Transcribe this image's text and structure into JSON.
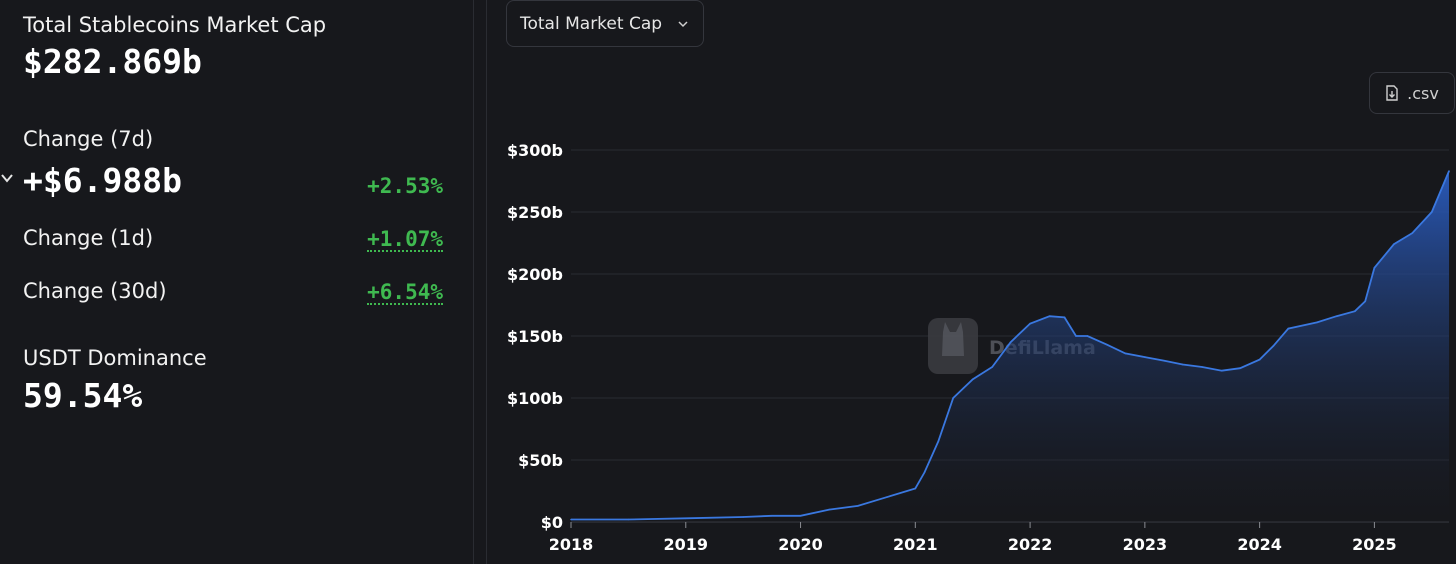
{
  "stats": {
    "total_label": "Total Stablecoins Market Cap",
    "total_value": "$282.869b",
    "change7d_label": "Change (7d)",
    "change7d_value": "+$6.988b",
    "change7d_pct": "+2.53%",
    "change1d_label": "Change (1d)",
    "change1d_pct": "+1.07%",
    "change30d_label": "Change (30d)",
    "change30d_pct": "+6.54%",
    "dominance_label": "USDT Dominance",
    "dominance_value": "59.54%"
  },
  "controls": {
    "dropdown_label": "Total Market Cap",
    "csv_label": ".csv"
  },
  "watermark": "DefiLlama",
  "colors": {
    "positive": "#3fb950",
    "line": "#3a78e0",
    "area_top": "#2a5cc0",
    "grid": "#2a2c32"
  },
  "chart_data": {
    "type": "area",
    "title": "",
    "xlabel": "",
    "ylabel": "",
    "ylim": [
      0,
      300
    ],
    "xlim": [
      2018,
      2025.65
    ],
    "y_ticks": [
      "$0",
      "$50b",
      "$100b",
      "$150b",
      "$200b",
      "$250b",
      "$300b"
    ],
    "y_tick_values": [
      0,
      50,
      100,
      150,
      200,
      250,
      300
    ],
    "x_ticks": [
      "2018",
      "2019",
      "2020",
      "2021",
      "2022",
      "2023",
      "2024",
      "2025"
    ],
    "x_tick_values": [
      2018,
      2019,
      2020,
      2021,
      2022,
      2023,
      2024,
      2025
    ],
    "grid": true,
    "series": [
      {
        "name": "",
        "x": [
          2018.0,
          2018.5,
          2019.0,
          2019.5,
          2019.75,
          2020.0,
          2020.25,
          2020.5,
          2020.75,
          2021.0,
          2021.08,
          2021.2,
          2021.33,
          2021.42,
          2021.5,
          2021.67,
          2021.83,
          2022.0,
          2022.17,
          2022.3,
          2022.4,
          2022.5,
          2022.67,
          2022.83,
          2023.0,
          2023.17,
          2023.33,
          2023.5,
          2023.67,
          2023.83,
          2024.0,
          2024.12,
          2024.25,
          2024.5,
          2024.67,
          2024.83,
          2024.92,
          2025.0,
          2025.17,
          2025.33,
          2025.5,
          2025.65
        ],
        "values": [
          2,
          2,
          3,
          4,
          5,
          5,
          10,
          13,
          20,
          27,
          40,
          65,
          100,
          108,
          115,
          125,
          145,
          160,
          166,
          165,
          150,
          150,
          143,
          136,
          133,
          130,
          127,
          125,
          122,
          124,
          131,
          142,
          156,
          161,
          166,
          170,
          178,
          205,
          224,
          233,
          250,
          283
        ]
      }
    ]
  }
}
